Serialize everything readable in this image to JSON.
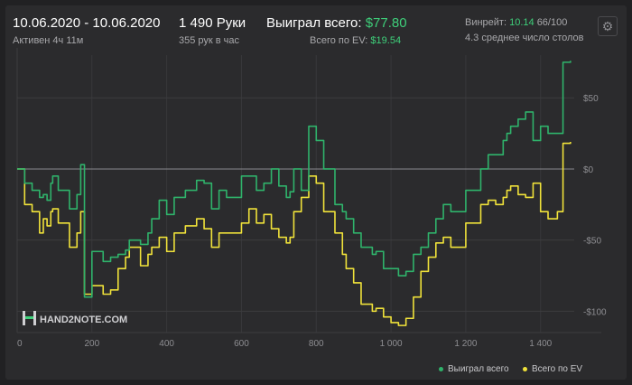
{
  "header": {
    "date_range": "10.06.2020 - 10.06.2020",
    "active_time": "Активен 4ч 11м",
    "hands": "1 490 Руки",
    "hands_per_hour": "355 рук в час",
    "won_label": "Выиграл всего:",
    "won_value": "$77.80",
    "ev_label": "Всего по EV:",
    "ev_value": "$19.54",
    "winrate_label": "Винрейт:",
    "winrate_value": "10.14",
    "winrate_suffix": "66/100",
    "avg_tables": "4.3 среднее число столов"
  },
  "watermark": "HAND2NOTE.COM",
  "colors": {
    "won": "#2fb36b",
    "ev": "#f0e23a",
    "accent": "#3ecf7a"
  },
  "icons": {
    "settings": "gear-icon",
    "logo": "hand2note-logo-icon"
  },
  "chart_data": {
    "type": "line",
    "xlim": [
      0,
      1490
    ],
    "ylim": [
      -115,
      80
    ],
    "x_ticks": [
      0,
      200,
      400,
      600,
      800,
      1000,
      1200,
      1400
    ],
    "x_tick_labels": [
      "0",
      "200",
      "400",
      "600",
      "800",
      "1 000",
      "1 200",
      "1 400"
    ],
    "y_ticks": [
      50,
      0,
      -50,
      -100
    ],
    "y_tick_labels": [
      "$50",
      "$0",
      "-$50",
      "-$100"
    ],
    "grid": true,
    "legend": "bottom-right",
    "series": [
      {
        "name": "Выиграл всего",
        "color": "#2fb36b",
        "x": [
          0,
          20,
          40,
          60,
          70,
          80,
          90,
          95,
          110,
          140,
          160,
          170,
          180,
          200,
          230,
          250,
          270,
          290,
          300,
          330,
          350,
          360,
          380,
          400,
          420,
          450,
          480,
          500,
          520,
          540,
          560,
          600,
          620,
          640,
          660,
          680,
          700,
          720,
          730,
          740,
          760,
          780,
          800,
          820,
          850,
          870,
          880,
          900,
          920,
          950,
          960,
          980,
          1000,
          1020,
          1040,
          1060,
          1080,
          1100,
          1120,
          1140,
          1160,
          1200,
          1240,
          1260,
          1280,
          1300,
          1310,
          1320,
          1340,
          1360,
          1380,
          1400,
          1420,
          1430,
          1440,
          1445,
          1460,
          1480
        ],
        "y": [
          0,
          -10,
          -15,
          -20,
          -18,
          -22,
          -10,
          -5,
          -15,
          -28,
          -18,
          3,
          -90,
          -58,
          -65,
          -62,
          -60,
          -57,
          -50,
          -53,
          -45,
          -35,
          -22,
          -32,
          -20,
          -15,
          -8,
          -10,
          -28,
          -15,
          -20,
          -5,
          -5,
          -15,
          -10,
          0,
          -12,
          -20,
          -16,
          0,
          -15,
          30,
          20,
          0,
          -25,
          -30,
          -35,
          -45,
          -55,
          -60,
          -58,
          -70,
          -70,
          -75,
          -72,
          -60,
          -55,
          -45,
          -35,
          -25,
          -30,
          -15,
          0,
          10,
          10,
          20,
          25,
          30,
          35,
          40,
          20,
          30,
          25,
          25,
          25,
          25,
          75,
          76
        ]
      },
      {
        "name": "Всего по EV",
        "color": "#f0e23a",
        "x": [
          0,
          20,
          40,
          60,
          70,
          80,
          90,
          95,
          110,
          140,
          160,
          170,
          180,
          200,
          230,
          250,
          270,
          290,
          300,
          330,
          350,
          360,
          380,
          400,
          420,
          450,
          480,
          500,
          520,
          540,
          560,
          600,
          620,
          640,
          660,
          680,
          700,
          720,
          730,
          740,
          760,
          780,
          800,
          820,
          850,
          870,
          880,
          900,
          920,
          950,
          960,
          980,
          1000,
          1020,
          1040,
          1060,
          1080,
          1100,
          1120,
          1140,
          1160,
          1200,
          1240,
          1260,
          1280,
          1300,
          1310,
          1320,
          1340,
          1360,
          1380,
          1400,
          1420,
          1430,
          1440,
          1445,
          1460,
          1480
        ],
        "y": [
          0,
          -25,
          -30,
          -45,
          -35,
          -40,
          -30,
          -28,
          -38,
          -55,
          -45,
          -30,
          -88,
          -82,
          -88,
          -85,
          -70,
          -62,
          -55,
          -68,
          -60,
          -55,
          -48,
          -58,
          -45,
          -40,
          -35,
          -42,
          -55,
          -45,
          -45,
          -38,
          -28,
          -38,
          -32,
          -42,
          -48,
          -52,
          -48,
          -30,
          -20,
          -5,
          -10,
          -30,
          -45,
          -60,
          -70,
          -80,
          -95,
          -100,
          -98,
          -104,
          -108,
          -110,
          -105,
          -90,
          -72,
          -62,
          -52,
          -48,
          -55,
          -38,
          -25,
          -22,
          -25,
          -20,
          -15,
          -12,
          -18,
          -20,
          -10,
          -30,
          -35,
          -35,
          -35,
          -30,
          18,
          19
        ]
      }
    ]
  }
}
